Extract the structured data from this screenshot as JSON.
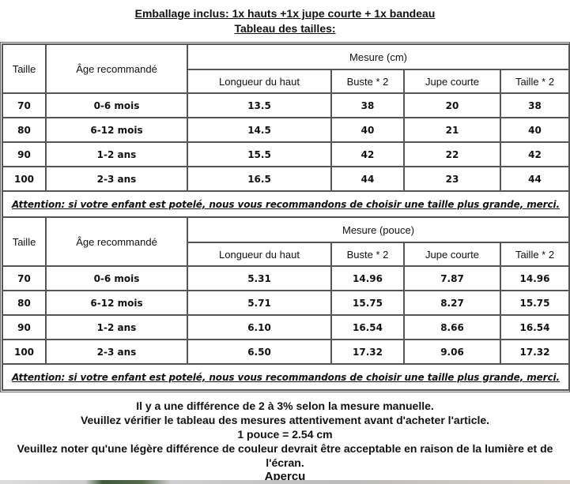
{
  "header": {
    "package": "Emballage inclus: 1x hauts +1x jupe courte + 1x bandeau",
    "chart_title": "Tableau des tailles:"
  },
  "tables": [
    {
      "col_size": "Taille",
      "col_age": "Âge recommandé",
      "group": "Mesure (cm)",
      "cols": [
        "Longueur du haut",
        "Buste * 2",
        "Jupe courte",
        "Taille * 2"
      ],
      "rows": [
        [
          "70",
          "0-6 mois",
          "13.5",
          "38",
          "20",
          "38"
        ],
        [
          "80",
          "6-12 mois",
          "14.5",
          "40",
          "21",
          "40"
        ],
        [
          "90",
          "1-2 ans",
          "15.5",
          "42",
          "22",
          "42"
        ],
        [
          "100",
          "2-3 ans",
          "16.5",
          "44",
          "23",
          "44"
        ]
      ],
      "attention": "Attention: si votre enfant est potelé, nous vous recommandons de choisir une taille plus grande, merci."
    },
    {
      "col_size": "Taille",
      "col_age": "Âge recommandé",
      "group": "Mesure (pouce)",
      "cols": [
        "Longueur du haut",
        "Buste * 2",
        "Jupe courte",
        "Taille * 2"
      ],
      "rows": [
        [
          "70",
          "0-6 mois",
          "5.31",
          "14.96",
          "7.87",
          "14.96"
        ],
        [
          "80",
          "6-12 mois",
          "5.71",
          "15.75",
          "8.27",
          "15.75"
        ],
        [
          "90",
          "1-2 ans",
          "6.10",
          "16.54",
          "8.66",
          "16.54"
        ],
        [
          "100",
          "2-3 ans",
          "6.50",
          "17.32",
          "9.06",
          "17.32"
        ]
      ],
      "attention": "Attention: si votre enfant est potelé, nous vous recommandons de choisir une taille plus grande, merci."
    }
  ],
  "notes": [
    "Il y a une différence de 2 à 3% selon la mesure manuelle.",
    "Veuillez vérifier le tableau des mesures attentivement avant d'acheter l'article.",
    "1 pouce = 2.54 cm",
    "Veuillez noter qu'une légère différence de couleur devrait être acceptable en raison de la lumière et de l'écran.",
    "Aperçu"
  ]
}
